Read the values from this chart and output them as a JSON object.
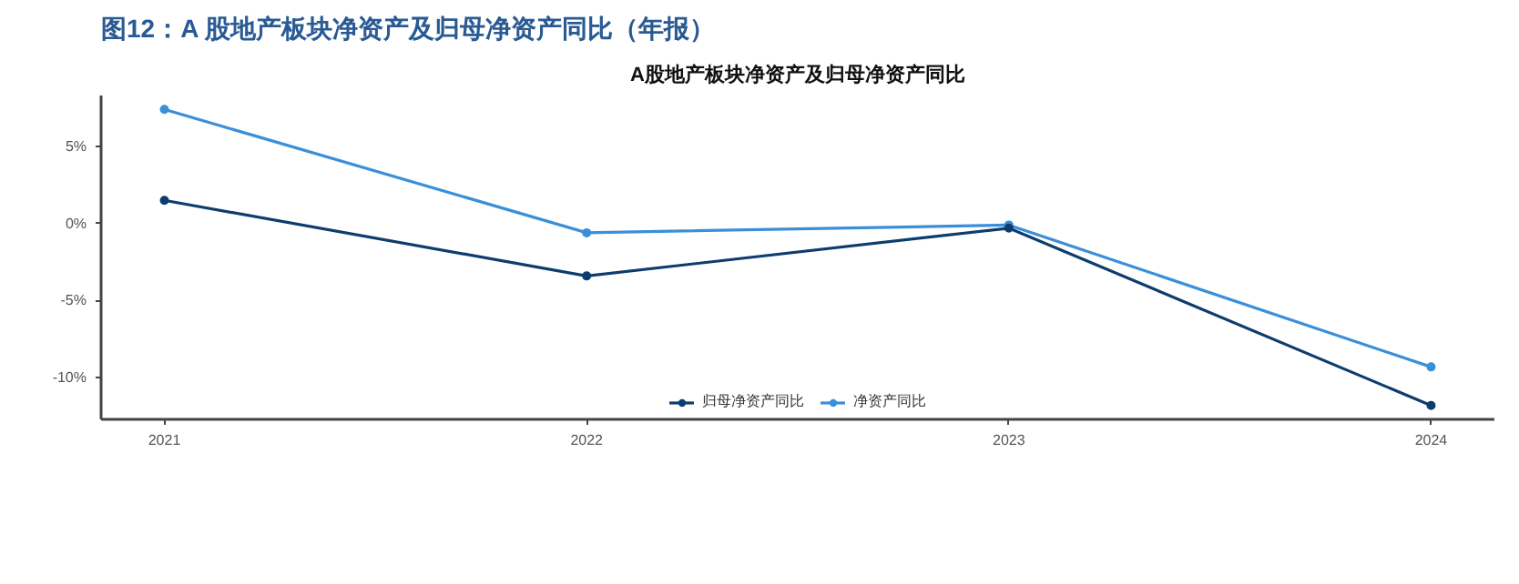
{
  "chart_data": {
    "type": "line",
    "title": "图12：A 股地产板块净资产及归母净资产同比（年报）",
    "subtitle": "A股地产板块净资产及归母净资产同比",
    "x": [
      2021,
      2022,
      2023,
      2024
    ],
    "series": [
      {
        "name": "归母净资产同比",
        "color": "#0d3c6e",
        "values": [
          1.5,
          -3.4,
          -0.3,
          -11.8
        ]
      },
      {
        "name": "净资产同比",
        "color": "#3a8fd9",
        "values": [
          7.4,
          -0.6,
          -0.1,
          -9.3
        ]
      }
    ],
    "xlim": [
      2020.85,
      2024.15
    ],
    "ylim": [
      -12.7,
      8.3
    ],
    "xticks": [
      2021,
      2022,
      2023,
      2024
    ],
    "yticks": [
      {
        "value": -10,
        "label": "-10%"
      },
      {
        "value": -5,
        "label": "-5%"
      },
      {
        "value": 0,
        "label": "0%"
      },
      {
        "value": 5,
        "label": "5%"
      }
    ],
    "grid": false,
    "legend": "bottom",
    "marker": "circle",
    "line_style": "solid"
  }
}
